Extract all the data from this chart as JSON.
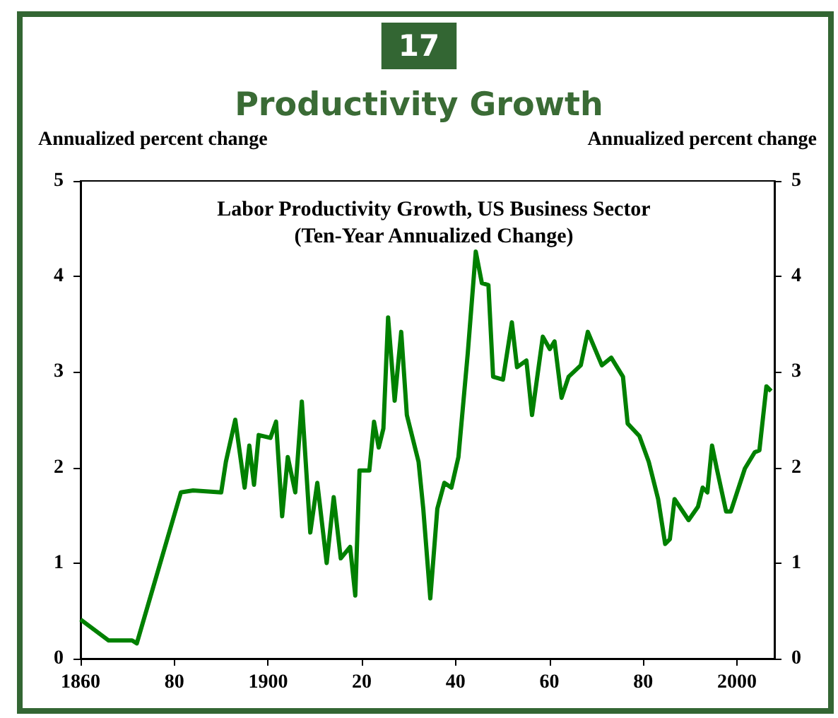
{
  "chart_data": {
    "type": "line",
    "title": "Productivity Growth",
    "subtitle": "Labor Productivity Growth, US Business Sector\n(Ten-Year Annualized Change)",
    "annotations": [
      "17"
    ],
    "ylabel": "Annualized percent change",
    "y2label": "Annualized percent change",
    "xlim": [
      1860,
      2008
    ],
    "xticks": [
      1860,
      {
        "value": 1880,
        "label": "80"
      },
      1900,
      {
        "value": 1920,
        "label": "20"
      },
      {
        "value": 1940,
        "label": "40"
      },
      {
        "value": 1960,
        "label": "60"
      },
      {
        "value": 1980,
        "label": "80"
      },
      2000
    ],
    "ylim": [
      0,
      5
    ],
    "yticks": [
      0,
      1,
      2,
      3,
      4,
      5
    ],
    "y2lim": [
      0,
      5
    ],
    "y2ticks": [
      0,
      1,
      2,
      3,
      4,
      5
    ],
    "grid": false,
    "series": [
      {
        "color": "#008000",
        "x": [
          1860,
          1866,
          1871,
          1872,
          1881.4,
          1884,
          1890,
          1891,
          1893,
          1895,
          1896,
          1897,
          1898,
          1900.5,
          1901.7,
          1903,
          1904.2,
          1905.8,
          1907.2,
          1909,
          1910.5,
          1912.5,
          1914,
          1915.5,
          1917.5,
          1918.6,
          1919.5,
          1921.6,
          1922.6,
          1923.6,
          1924.6,
          1925.6,
          1927,
          1928.4,
          1929.6,
          1932.1,
          1933.1,
          1934.6,
          1936.1,
          1937.6,
          1939.1,
          1940.6,
          1942.6,
          1944.3,
          1945.6,
          1947,
          1948,
          1950.1,
          1952,
          1953.1,
          1955.1,
          1956.3,
          1958.6,
          1960.1,
          1961.1,
          1962.6,
          1964.1,
          1966.7,
          1968.2,
          1971.2,
          1973.2,
          1975.7,
          1976.7,
          1979.2,
          1981.2,
          1983.2,
          1984.7,
          1985.7,
          1986.7,
          1989.7,
          1991.7,
          1992.7,
          1993.7,
          1994.7,
          1995.7,
          1997.7,
          1998.7,
          2001.7,
          2003.8,
          2004.8,
          2006.3,
          2007.3
        ],
        "values": [
          0.41,
          0.19,
          0.19,
          0.16,
          1.74,
          1.76,
          1.74,
          2.06,
          2.5,
          1.79,
          2.23,
          1.82,
          2.34,
          2.31,
          2.48,
          1.49,
          2.11,
          1.74,
          2.69,
          1.32,
          1.84,
          1.0,
          1.69,
          1.05,
          1.17,
          0.66,
          1.97,
          1.97,
          2.48,
          2.21,
          2.41,
          3.57,
          2.7,
          3.42,
          2.55,
          2.06,
          1.57,
          0.63,
          1.57,
          1.84,
          1.79,
          2.11,
          3.2,
          4.26,
          3.93,
          3.91,
          2.95,
          2.92,
          3.52,
          3.05,
          3.12,
          2.55,
          3.37,
          3.24,
          3.32,
          2.73,
          2.95,
          3.07,
          3.42,
          3.07,
          3.15,
          2.95,
          2.46,
          2.33,
          2.06,
          1.67,
          1.2,
          1.25,
          1.67,
          1.45,
          1.59,
          1.79,
          1.74,
          2.23,
          1.99,
          1.54,
          1.54,
          1.99,
          2.16,
          2.18,
          2.85,
          2.8
        ]
      }
    ]
  }
}
